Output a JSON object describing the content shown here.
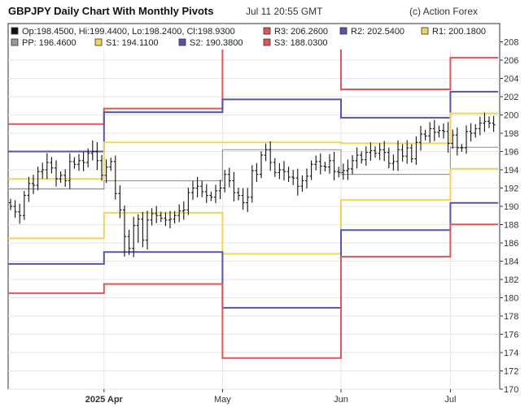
{
  "header": {
    "title": "GBPJPY Daily Chart With Monthly Pivots",
    "timestamp": "Jul 11 20:55 GMT",
    "credit": "(c) Action Forex"
  },
  "legend": [
    {
      "label": "Op:198.4500, Hi:199.4400, Lo:198.2400, Cl:198.9300",
      "color": "#111111",
      "type": "ohlc"
    },
    {
      "label": "R3: 206.2600",
      "color": "#e05555"
    },
    {
      "label": "R2: 202.5400",
      "color": "#5555aa"
    },
    {
      "label": "R1: 200.1800",
      "color": "#f2d45a"
    },
    {
      "label": "PP: 196.4600",
      "color": "#999999"
    },
    {
      "label": "S1: 194.1100",
      "color": "#f2d45a"
    },
    {
      "label": "S2: 190.3800",
      "color": "#5555aa"
    },
    {
      "label": "S3: 188.0300",
      "color": "#e05555"
    }
  ],
  "chart_data": {
    "type": "ohlc",
    "ylim": [
      170,
      210
    ],
    "y_ticks": [
      170,
      172,
      174,
      176,
      178,
      180,
      182,
      184,
      186,
      188,
      190,
      192,
      194,
      196,
      198,
      200,
      202,
      204,
      206,
      208
    ],
    "x_labels": [
      {
        "label": "2025 Apr",
        "bar": 20.5,
        "bold": true
      },
      {
        "label": "May",
        "bar": 46.5,
        "bold": false
      },
      {
        "label": "Jun",
        "bar": 72.5,
        "bold": false
      },
      {
        "label": "Jul",
        "bar": 96.5,
        "bold": false
      }
    ],
    "month_starts": [
      20.5,
      46.5,
      72.5,
      96.5
    ],
    "num_bars": 107,
    "pivot_periods": [
      {
        "from_bar": -1,
        "to_bar": 20.5,
        "R3": 199.0,
        "R2": 196.0,
        "R1": 193.0,
        "PP": 191.9,
        "S1": 186.5,
        "S2": 183.7,
        "S3": 180.5
      },
      {
        "from_bar": 20.5,
        "to_bar": 46.5,
        "R3": 200.7,
        "R2": 200.3,
        "R1": 197.0,
        "PP": 192.8,
        "S1": 189.3,
        "S2": 185.0,
        "S3": 181.5
      },
      {
        "from_bar": 46.5,
        "to_bar": 72.5,
        "R3": 207.6,
        "R2": 201.7,
        "R1": 197.0,
        "PP": 196.2,
        "S1": 184.8,
        "S2": 178.9,
        "S3": 173.4
      },
      {
        "from_bar": 72.5,
        "to_bar": 96.5,
        "R3": 202.8,
        "R2": 199.7,
        "R1": 196.9,
        "PP": 193.5,
        "S1": 190.7,
        "S2": 187.4,
        "S3": 184.5
      },
      {
        "from_bar": 96.5,
        "to_bar": 107,
        "R3": 206.26,
        "R2": 202.54,
        "R1": 200.18,
        "PP": 196.46,
        "S1": 194.11,
        "S2": 190.38,
        "S3": 188.03
      }
    ],
    "closes": [
      190.0,
      189.4,
      189.0,
      191.2,
      192.5,
      192.3,
      193.8,
      194.0,
      194.8,
      194.2,
      193.0,
      193.4,
      192.8,
      194.9,
      194.6,
      195.0,
      194.8,
      195.8,
      196.0,
      195.0,
      193.4,
      194.3,
      194.9,
      191.4,
      189.6,
      186.7,
      185.4,
      187.9,
      188.6,
      186.3,
      188.5,
      189.2,
      189.0,
      188.7,
      188.5,
      188.6,
      189.0,
      189.5,
      189.6,
      191.5,
      192.0,
      192.2,
      191.6,
      191.2,
      191.0,
      191.7,
      192.0,
      193.5,
      192.8,
      191.5,
      191.2,
      190.4,
      191.0,
      193.9,
      193.5,
      195.6,
      196.2,
      194.8,
      193.7,
      194.0,
      193.8,
      193.2,
      193.1,
      192.2,
      192.8,
      193.3,
      194.6,
      194.9,
      194.4,
      194.3,
      195.0,
      193.8,
      193.7,
      193.9,
      194.1,
      195.0,
      195.6,
      195.1,
      195.9,
      196.1,
      195.8,
      196.2,
      195.9,
      194.7,
      194.9,
      196.2,
      195.5,
      196.4,
      195.2,
      197.0,
      197.9,
      197.7,
      198.5,
      198.1,
      198.3,
      198.2,
      196.9,
      197.8,
      196.4,
      196.4,
      198.2,
      198.0,
      198.5,
      199.1,
      199.3,
      199.1,
      198.93
    ]
  }
}
